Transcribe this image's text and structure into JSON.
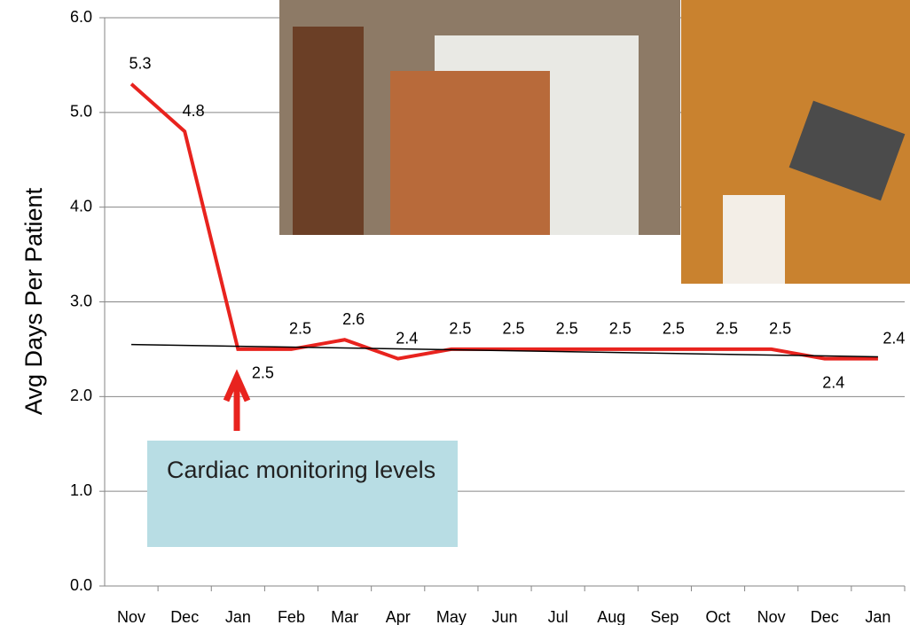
{
  "chart_data": {
    "type": "line",
    "y_label": "Avg Days Per Patient",
    "categories": [
      "Nov",
      "Dec",
      "Jan",
      "Feb",
      "Mar",
      "Apr",
      "May",
      "Jun",
      "Jul",
      "Aug",
      "Sep",
      "Oct",
      "Nov",
      "Dec",
      "Jan"
    ],
    "series": [
      {
        "color": "#e8231e",
        "values": [
          5.3,
          4.8,
          2.5,
          2.5,
          2.6,
          2.4,
          2.5,
          2.5,
          2.5,
          2.5,
          2.5,
          2.5,
          2.5,
          2.4,
          2.4
        ]
      }
    ],
    "trendline": {
      "color": "#000000",
      "values": [
        2.55,
        2.42
      ]
    },
    "ylim": [
      0,
      6
    ],
    "yticks": [
      {
        "value": 0,
        "label": "0.0"
      },
      {
        "value": 1,
        "label": "1.0"
      },
      {
        "value": 2,
        "label": "2.0"
      },
      {
        "value": 3,
        "label": "3.0"
      },
      {
        "value": 4,
        "label": "4.0"
      },
      {
        "value": 5,
        "label": "5.0"
      },
      {
        "value": 6,
        "label": "6.0"
      }
    ],
    "grid": true,
    "annotation": "Cardiac monitoring levels"
  }
}
